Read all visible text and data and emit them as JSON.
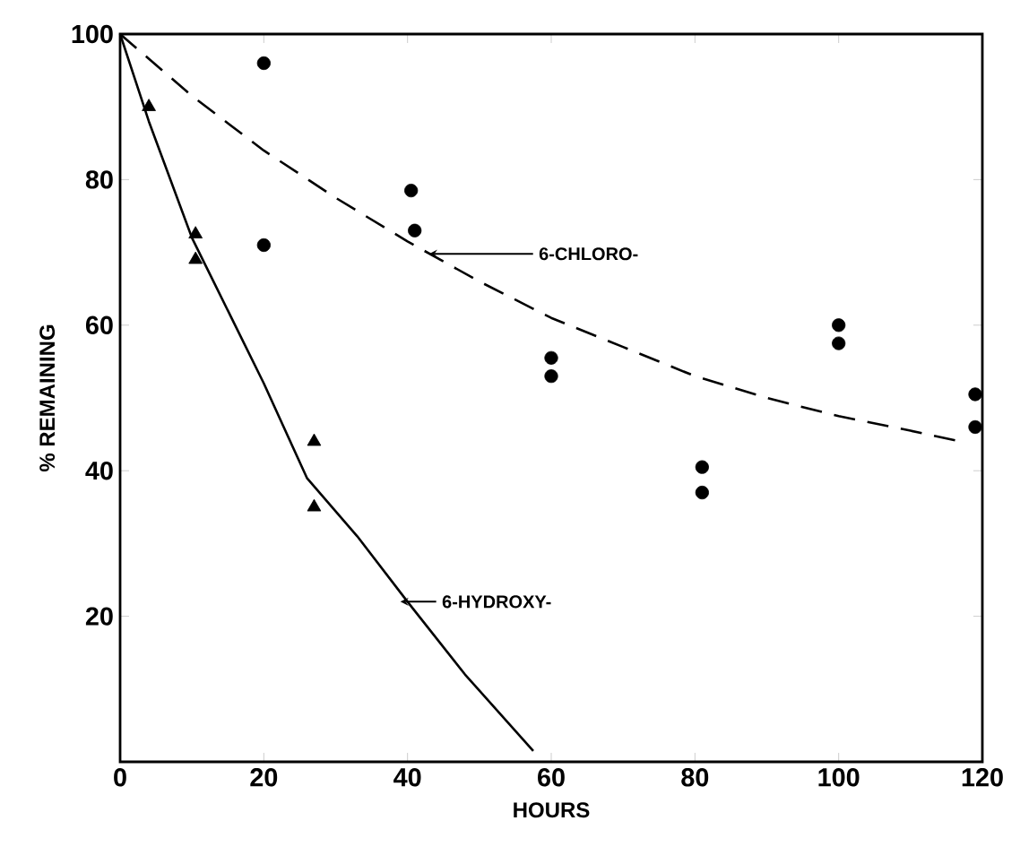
{
  "chart_data": {
    "type": "scatter",
    "xlabel": "HOURS",
    "ylabel": "% REMAINING",
    "xlim": [
      0,
      120
    ],
    "ylim": [
      0,
      100
    ],
    "xticks": [
      0,
      20,
      40,
      60,
      80,
      100,
      120
    ],
    "yticks": [
      20,
      40,
      60,
      80,
      100
    ],
    "grid": false,
    "series": [
      {
        "marker": "circle",
        "color": "#000000",
        "x": [
          20,
          20,
          40.5,
          41,
          60,
          60,
          81,
          81,
          100,
          100,
          119,
          119
        ],
        "values": [
          96,
          71,
          78.5,
          73,
          55.5,
          53,
          40.5,
          37,
          60,
          57.5,
          50.5,
          46
        ]
      },
      {
        "marker": "triangle",
        "color": "#000000",
        "x": [
          4,
          10.5,
          10.5,
          27,
          27
        ],
        "values": [
          90,
          72.5,
          69,
          44,
          35
        ]
      },
      {
        "type": "line",
        "line_style": "dashed",
        "marker": "none",
        "color": "#000000",
        "x": [
          0,
          10,
          20,
          30,
          40,
          50,
          60,
          70,
          80,
          90,
          100,
          110,
          117
        ],
        "values": [
          100,
          91.5,
          84,
          77.5,
          71.5,
          66,
          61,
          57,
          53,
          50,
          47.5,
          45.5,
          44
        ]
      },
      {
        "type": "line",
        "line_style": "solid",
        "marker": "none",
        "color": "#000000",
        "x": [
          0,
          4,
          10,
          13,
          20,
          26,
          33,
          40,
          48,
          57.5
        ],
        "values": [
          100,
          88,
          72,
          66,
          52,
          39,
          31,
          22,
          12,
          1.5
        ]
      }
    ],
    "annotations": [
      {
        "text": "6-CHLORO-",
        "x": 43,
        "y": 69.8
      },
      {
        "text": "6-HYDROXY-",
        "x": 39,
        "y": 22
      }
    ]
  }
}
